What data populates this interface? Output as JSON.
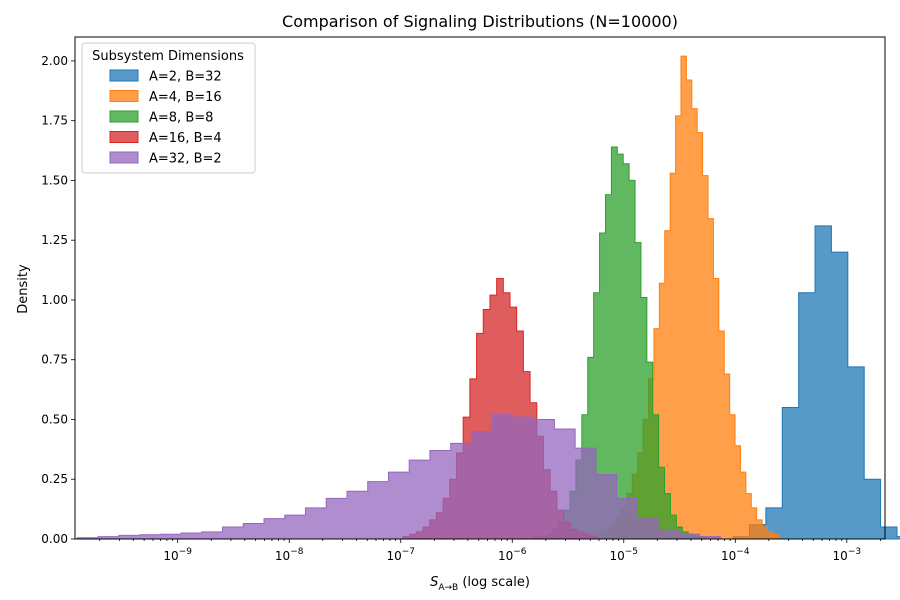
{
  "chart_data": {
    "type": "histogram",
    "title": "Comparison of Signaling Distributions (N=10000)",
    "xlabel_main": "S",
    "xlabel_sub": "A→B",
    "xlabel_suffix": " (log scale)",
    "ylabel": "Density",
    "x_scale": "log",
    "xlim": [
      1.2e-10,
      0.0022
    ],
    "ylim": [
      0,
      2.1
    ],
    "x_ticks": [
      {
        "value": 1e-09,
        "label_base": "10",
        "label_exp": "−9"
      },
      {
        "value": 1e-08,
        "label_base": "10",
        "label_exp": "−8"
      },
      {
        "value": 1e-07,
        "label_base": "10",
        "label_exp": "−7"
      },
      {
        "value": 1e-06,
        "label_base": "10",
        "label_exp": "−6"
      },
      {
        "value": 1e-05,
        "label_base": "10",
        "label_exp": "−5"
      },
      {
        "value": 0.0001,
        "label_base": "10",
        "label_exp": "−4"
      },
      {
        "value": 0.001,
        "label_base": "10",
        "label_exp": "−3"
      }
    ],
    "y_ticks": [
      0.0,
      0.25,
      0.5,
      0.75,
      1.0,
      1.25,
      1.5,
      1.75,
      2.0
    ],
    "y_tick_labels": [
      "0.00",
      "0.25",
      "0.50",
      "0.75",
      "1.00",
      "1.25",
      "1.50",
      "1.75",
      "2.00"
    ],
    "legend": {
      "title": "Subsystem Dimensions",
      "placement": "top-left"
    },
    "series": [
      {
        "name": "A=2, B=32",
        "color": "#1f77b4",
        "log10_x_start": -4.02,
        "log10_bin_width": 0.147,
        "densities": [
          0.01,
          0.06,
          0.13,
          0.55,
          1.03,
          1.31,
          1.2,
          0.72,
          0.25,
          0.05,
          0.01
        ]
      },
      {
        "name": "A=4, B=16",
        "color": "#ff7f0e",
        "log10_x_start": -5.36,
        "log10_bin_width": 0.0485,
        "densities": [
          0.01,
          0.01,
          0.02,
          0.03,
          0.04,
          0.06,
          0.09,
          0.13,
          0.19,
          0.27,
          0.36,
          0.5,
          0.67,
          0.88,
          1.07,
          1.29,
          1.53,
          1.77,
          2.02,
          1.92,
          1.8,
          1.7,
          1.52,
          1.34,
          1.09,
          0.87,
          0.69,
          0.52,
          0.39,
          0.28,
          0.19,
          0.13,
          0.08,
          0.05,
          0.03,
          0.02
        ]
      },
      {
        "name": "A=8, B=8",
        "color": "#2ca02c",
        "log10_x_start": -5.8,
        "log10_bin_width": 0.053,
        "densities": [
          0.01,
          0.01,
          0.02,
          0.04,
          0.07,
          0.12,
          0.2,
          0.33,
          0.52,
          0.76,
          1.03,
          1.28,
          1.44,
          1.64,
          1.61,
          1.57,
          1.5,
          1.24,
          1.01,
          0.74,
          0.52,
          0.3,
          0.19,
          0.1,
          0.05,
          0.03,
          0.02,
          0.01,
          0.01
        ]
      },
      {
        "name": "A=16, B=4",
        "color": "#d62728",
        "log10_x_start": -6.98,
        "log10_bin_width": 0.06,
        "densities": [
          0.01,
          0.02,
          0.03,
          0.05,
          0.08,
          0.11,
          0.17,
          0.25,
          0.36,
          0.51,
          0.67,
          0.86,
          0.96,
          1.02,
          1.09,
          1.03,
          0.97,
          0.87,
          0.7,
          0.57,
          0.43,
          0.29,
          0.2,
          0.12,
          0.07,
          0.04,
          0.03,
          0.02,
          0.01
        ]
      },
      {
        "name": "A=32, B=2",
        "color": "#9467bd",
        "log10_x_start": -9.9,
        "log10_bin_width": 0.186,
        "densities": [
          0.005,
          0.01,
          0.015,
          0.018,
          0.02,
          0.025,
          0.03,
          0.05,
          0.065,
          0.085,
          0.1,
          0.13,
          0.17,
          0.2,
          0.24,
          0.28,
          0.33,
          0.37,
          0.4,
          0.45,
          0.52,
          0.51,
          0.5,
          0.46,
          0.38,
          0.27,
          0.17,
          0.09,
          0.04,
          0.02,
          0.01
        ]
      }
    ]
  }
}
